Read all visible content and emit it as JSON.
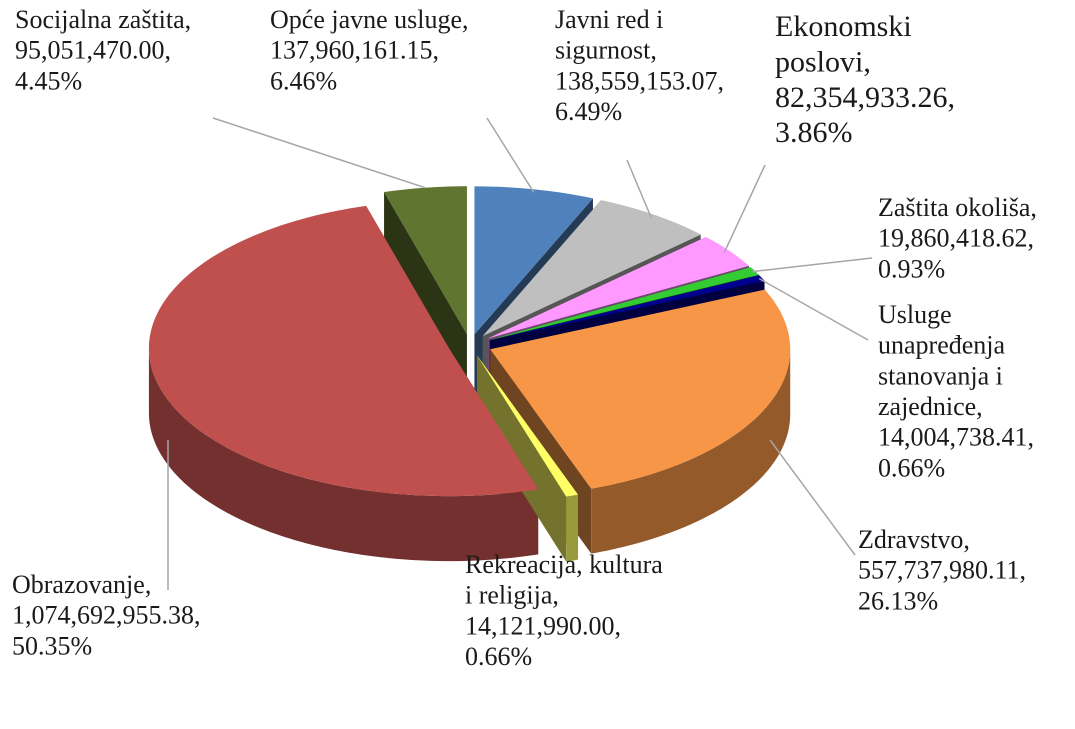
{
  "chart_data": {
    "type": "pie3d",
    "labels": [
      "Opće javne usluge, 137,960,161.15, 6.46%",
      "Javni red i sigurnost, 138,559,153.07, 6.49%",
      "Ekonomski poslovi, 82,354,933.26, 3.86%",
      "Zaštita okoliša, 19,860,418.62, 0.93%",
      "Usluge unapređenja stanovanja i zajednice, 14,004,738.41, 0.66%",
      "Zdravstvo, 557,737,980.11, 26.13%",
      "Rekreacija, kultura i religija, 14,121,990.00, 0.66%",
      "Obrazovanje, 1,074,692,955.38, 50.35%",
      "Socijalna zaštita, 95,051,470.00, 4.45%"
    ],
    "values": [
      137960161.15,
      138559153.07,
      82354933.26,
      19860418.62,
      14004738.41,
      557737980.11,
      14121990.0,
      1074692955.38,
      95051470.0
    ],
    "colors": [
      "#4f81bd",
      "#bfbfbf",
      "#ff99ff",
      "#33cc33",
      "#000090",
      "#f79646",
      "#ffff66",
      "#c0504d",
      "#5f7530"
    ]
  }
}
